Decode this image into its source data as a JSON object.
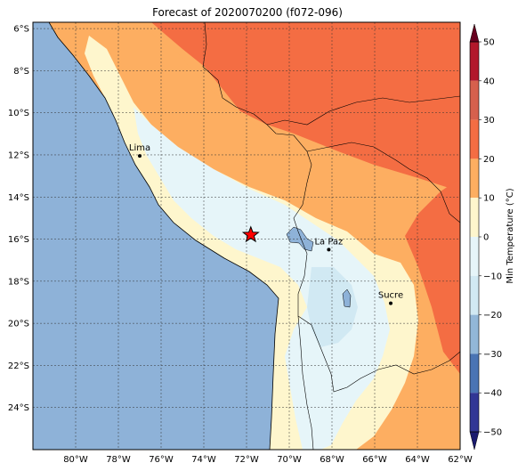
{
  "title": "Forecast of 2020070200 (f072-096)",
  "map": {
    "lon_range": [
      -82,
      -62
    ],
    "lat_range": [
      -26,
      -5.7
    ],
    "lon_ticks": [
      {
        "value": -80,
        "label": "80°W"
      },
      {
        "value": -78,
        "label": "78°W"
      },
      {
        "value": -76,
        "label": "76°W"
      },
      {
        "value": -74,
        "label": "74°W"
      },
      {
        "value": -72,
        "label": "72°W"
      },
      {
        "value": -70,
        "label": "70°W"
      },
      {
        "value": -68,
        "label": "68°W"
      },
      {
        "value": -66,
        "label": "66°W"
      },
      {
        "value": -64,
        "label": "64°W"
      },
      {
        "value": -62,
        "label": "62°W"
      }
    ],
    "lat_ticks": [
      {
        "value": -6,
        "label": "6°S"
      },
      {
        "value": -8,
        "label": "8°S"
      },
      {
        "value": -10,
        "label": "10°S"
      },
      {
        "value": -12,
        "label": "12°S"
      },
      {
        "value": -14,
        "label": "14°S"
      },
      {
        "value": -16,
        "label": "16°S"
      },
      {
        "value": -18,
        "label": "18°S"
      },
      {
        "value": -20,
        "label": "20°S"
      },
      {
        "value": -22,
        "label": "22°S"
      },
      {
        "value": -24,
        "label": "24°S"
      }
    ],
    "grid": true,
    "cities": [
      {
        "name": "Lima",
        "lon": -77.0,
        "lat": -12.05
      },
      {
        "name": "La Paz",
        "lon": -68.15,
        "lat": -16.5
      },
      {
        "name": "Sucre",
        "lon": -65.25,
        "lat": -19.05
      }
    ],
    "marker": {
      "icon": "red-star-icon",
      "lon": -71.8,
      "lat": -15.8,
      "color": "#ff0000"
    }
  },
  "colorbar": {
    "label": "Min Temperature (°C)",
    "ticks": [
      "50",
      "40",
      "30",
      "20",
      "10",
      "0",
      "−10",
      "−20",
      "−30",
      "−40",
      "−50"
    ],
    "levels": [
      {
        "min": 40,
        "max": 50,
        "color": "#b2182b"
      },
      {
        "min": 30,
        "max": 40,
        "color": "#d6604d"
      },
      {
        "min": 20,
        "max": 30,
        "color": "#f46d43"
      },
      {
        "min": 10,
        "max": 20,
        "color": "#fdae61"
      },
      {
        "min": 0,
        "max": 10,
        "color": "#fef6cd"
      },
      {
        "min": -10,
        "max": 0,
        "color": "#e6f5f9"
      },
      {
        "min": -20,
        "max": -10,
        "color": "#d1e9f3"
      },
      {
        "min": -30,
        "max": -20,
        "color": "#92b7d8"
      },
      {
        "min": -40,
        "max": -30,
        "color": "#4a74b4"
      },
      {
        "min": -50,
        "max": -40,
        "color": "#313695"
      }
    ]
  }
}
